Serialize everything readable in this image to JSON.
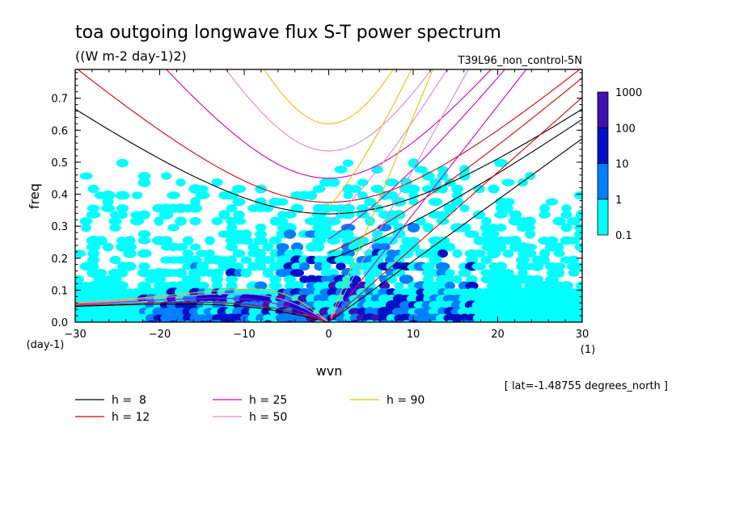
{
  "chart_data": {
    "type": "heatmap",
    "title": "toa outgoing longwave flux S-T power spectrum",
    "subtitle": "((W m-2 day-1)2)",
    "run_label": "T39L96_non_control-5N",
    "xlabel": "wvn",
    "ylabel": "freq",
    "x_unit": "(1)",
    "y_unit": "(day-1)",
    "xlim": [
      -30,
      30
    ],
    "ylim": [
      0,
      0.79
    ],
    "x_ticks": [
      -30,
      -20,
      -10,
      0,
      10,
      20,
      30
    ],
    "x_tick_labels": [
      "−30",
      "−20",
      "−10",
      "0",
      "10",
      "20",
      "30"
    ],
    "y_ticks": [
      0.0,
      0.1,
      0.2,
      0.3,
      0.4,
      0.5,
      0.6,
      0.7
    ],
    "y_tick_labels": [
      "0.0",
      "0.1",
      "0.2",
      "0.3",
      "0.4",
      "0.5",
      "0.6",
      "0.7"
    ],
    "grid": false,
    "footnote": "[ lat=-1.48755 degrees_north ]",
    "colorbar": {
      "labels": [
        "0.1",
        "1",
        "10",
        "100",
        "1000"
      ],
      "levels": [
        0.1,
        1,
        10,
        100,
        1000
      ],
      "colors": [
        "#00ffff",
        "#0080ff",
        "#0010c8",
        "#4010b0"
      ]
    },
    "series": [
      {
        "name": "h =  8",
        "label": "h =  8",
        "h": 8,
        "color": "#000000"
      },
      {
        "name": "h = 12",
        "label": "h = 12",
        "h": 12,
        "color": "#e00000"
      },
      {
        "name": "h = 25",
        "label": "h = 25",
        "h": 25,
        "color": "#d000c0"
      },
      {
        "name": "h = 50",
        "label": "h = 50",
        "h": 50,
        "color": "#dd88dd"
      },
      {
        "name": "h = 90",
        "label": "h = 90",
        "h": 90,
        "color": "#f0c000"
      }
    ]
  }
}
